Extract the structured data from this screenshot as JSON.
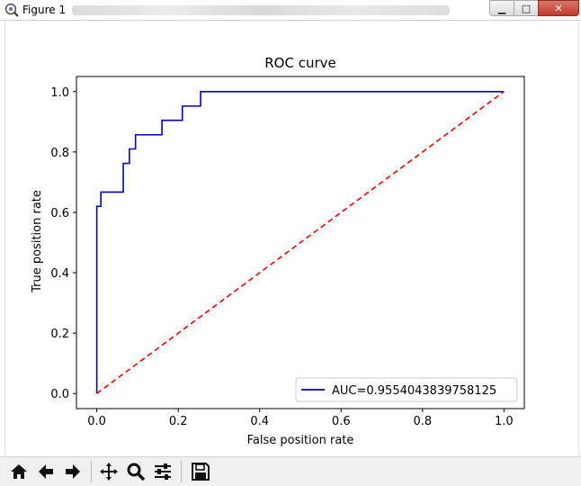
{
  "window": {
    "title": "Figure 1",
    "minimize_label": "▁",
    "maximize_label": "□",
    "close_label": "✕"
  },
  "toolbar": {
    "icons": [
      "home-icon",
      "back-arrow-icon",
      "forward-arrow-icon",
      "pan-move-icon",
      "zoom-magnifier-icon",
      "configure-subplots-icon",
      "save-disk-icon"
    ]
  },
  "chart_data": {
    "type": "line",
    "title": "ROC curve",
    "xlabel": "False position rate",
    "ylabel": "True position rate",
    "xlim": [
      -0.05,
      1.05
    ],
    "ylim": [
      -0.05,
      1.05
    ],
    "xticks": [
      "0.0",
      "0.2",
      "0.4",
      "0.6",
      "0.8",
      "1.0"
    ],
    "yticks": [
      "0.0",
      "0.2",
      "0.4",
      "0.6",
      "0.8",
      "1.0"
    ],
    "legend_position": "lower-right",
    "series": [
      {
        "name": "AUC=0.9554043839758125",
        "color": "#0000cc",
        "style": "solid",
        "x": [
          0.0,
          0.0,
          0.01,
          0.01,
          0.065,
          0.065,
          0.08,
          0.08,
          0.095,
          0.095,
          0.16,
          0.16,
          0.21,
          0.21,
          0.255,
          0.255,
          1.0
        ],
        "y": [
          0.0,
          0.62,
          0.62,
          0.667,
          0.667,
          0.762,
          0.762,
          0.81,
          0.81,
          0.857,
          0.857,
          0.905,
          0.905,
          0.952,
          0.952,
          1.0,
          1.0
        ]
      },
      {
        "name": "",
        "color": "#ff0000",
        "style": "dashed",
        "x": [
          0.0,
          1.0
        ],
        "y": [
          0.0,
          1.0
        ]
      }
    ]
  }
}
